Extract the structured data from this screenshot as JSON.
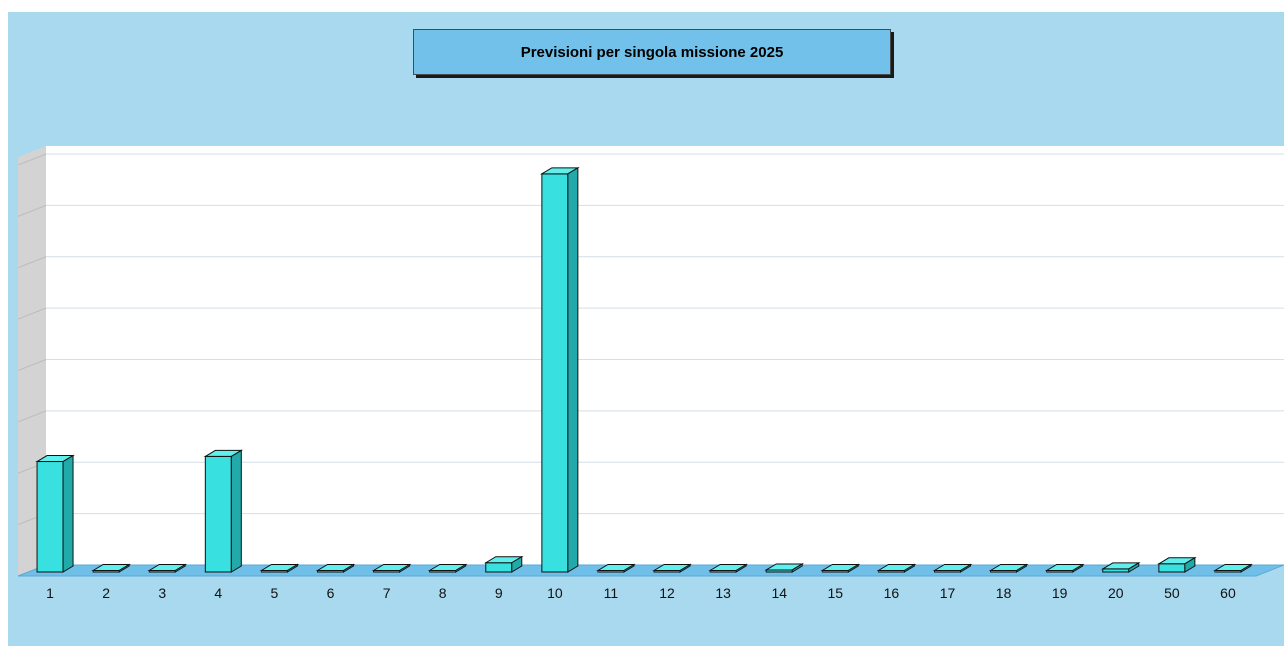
{
  "colors": {
    "background": "#a9d9ee",
    "plot_area": "#ffffff",
    "floor": "#6fbfe8",
    "side_wall": "#d3d3d3",
    "bar_front": "#38e0e0",
    "bar_top": "#5ff0ee",
    "bar_side": "#22a9a9",
    "title_box": "#72c1ea"
  },
  "chart_data": {
    "type": "bar",
    "style": "3d",
    "title": "Previsioni per singola missione 2025",
    "xlabel": "",
    "ylabel": "",
    "categories": [
      "1",
      "2",
      "3",
      "4",
      "5",
      "6",
      "7",
      "8",
      "9",
      "10",
      "11",
      "12",
      "13",
      "14",
      "15",
      "16",
      "17",
      "18",
      "19",
      "20",
      "50",
      "60"
    ],
    "values": [
      21.5,
      0,
      0,
      22.5,
      0,
      0,
      0,
      0,
      1.8,
      77.5,
      0,
      0,
      0,
      0.4,
      0,
      0,
      0,
      0,
      0,
      0.6,
      1.6,
      0
    ],
    "ylim": [
      0,
      80
    ],
    "y_gridlines": 8,
    "grid": true,
    "y_tick_labels_visible": false,
    "legend": "none"
  }
}
